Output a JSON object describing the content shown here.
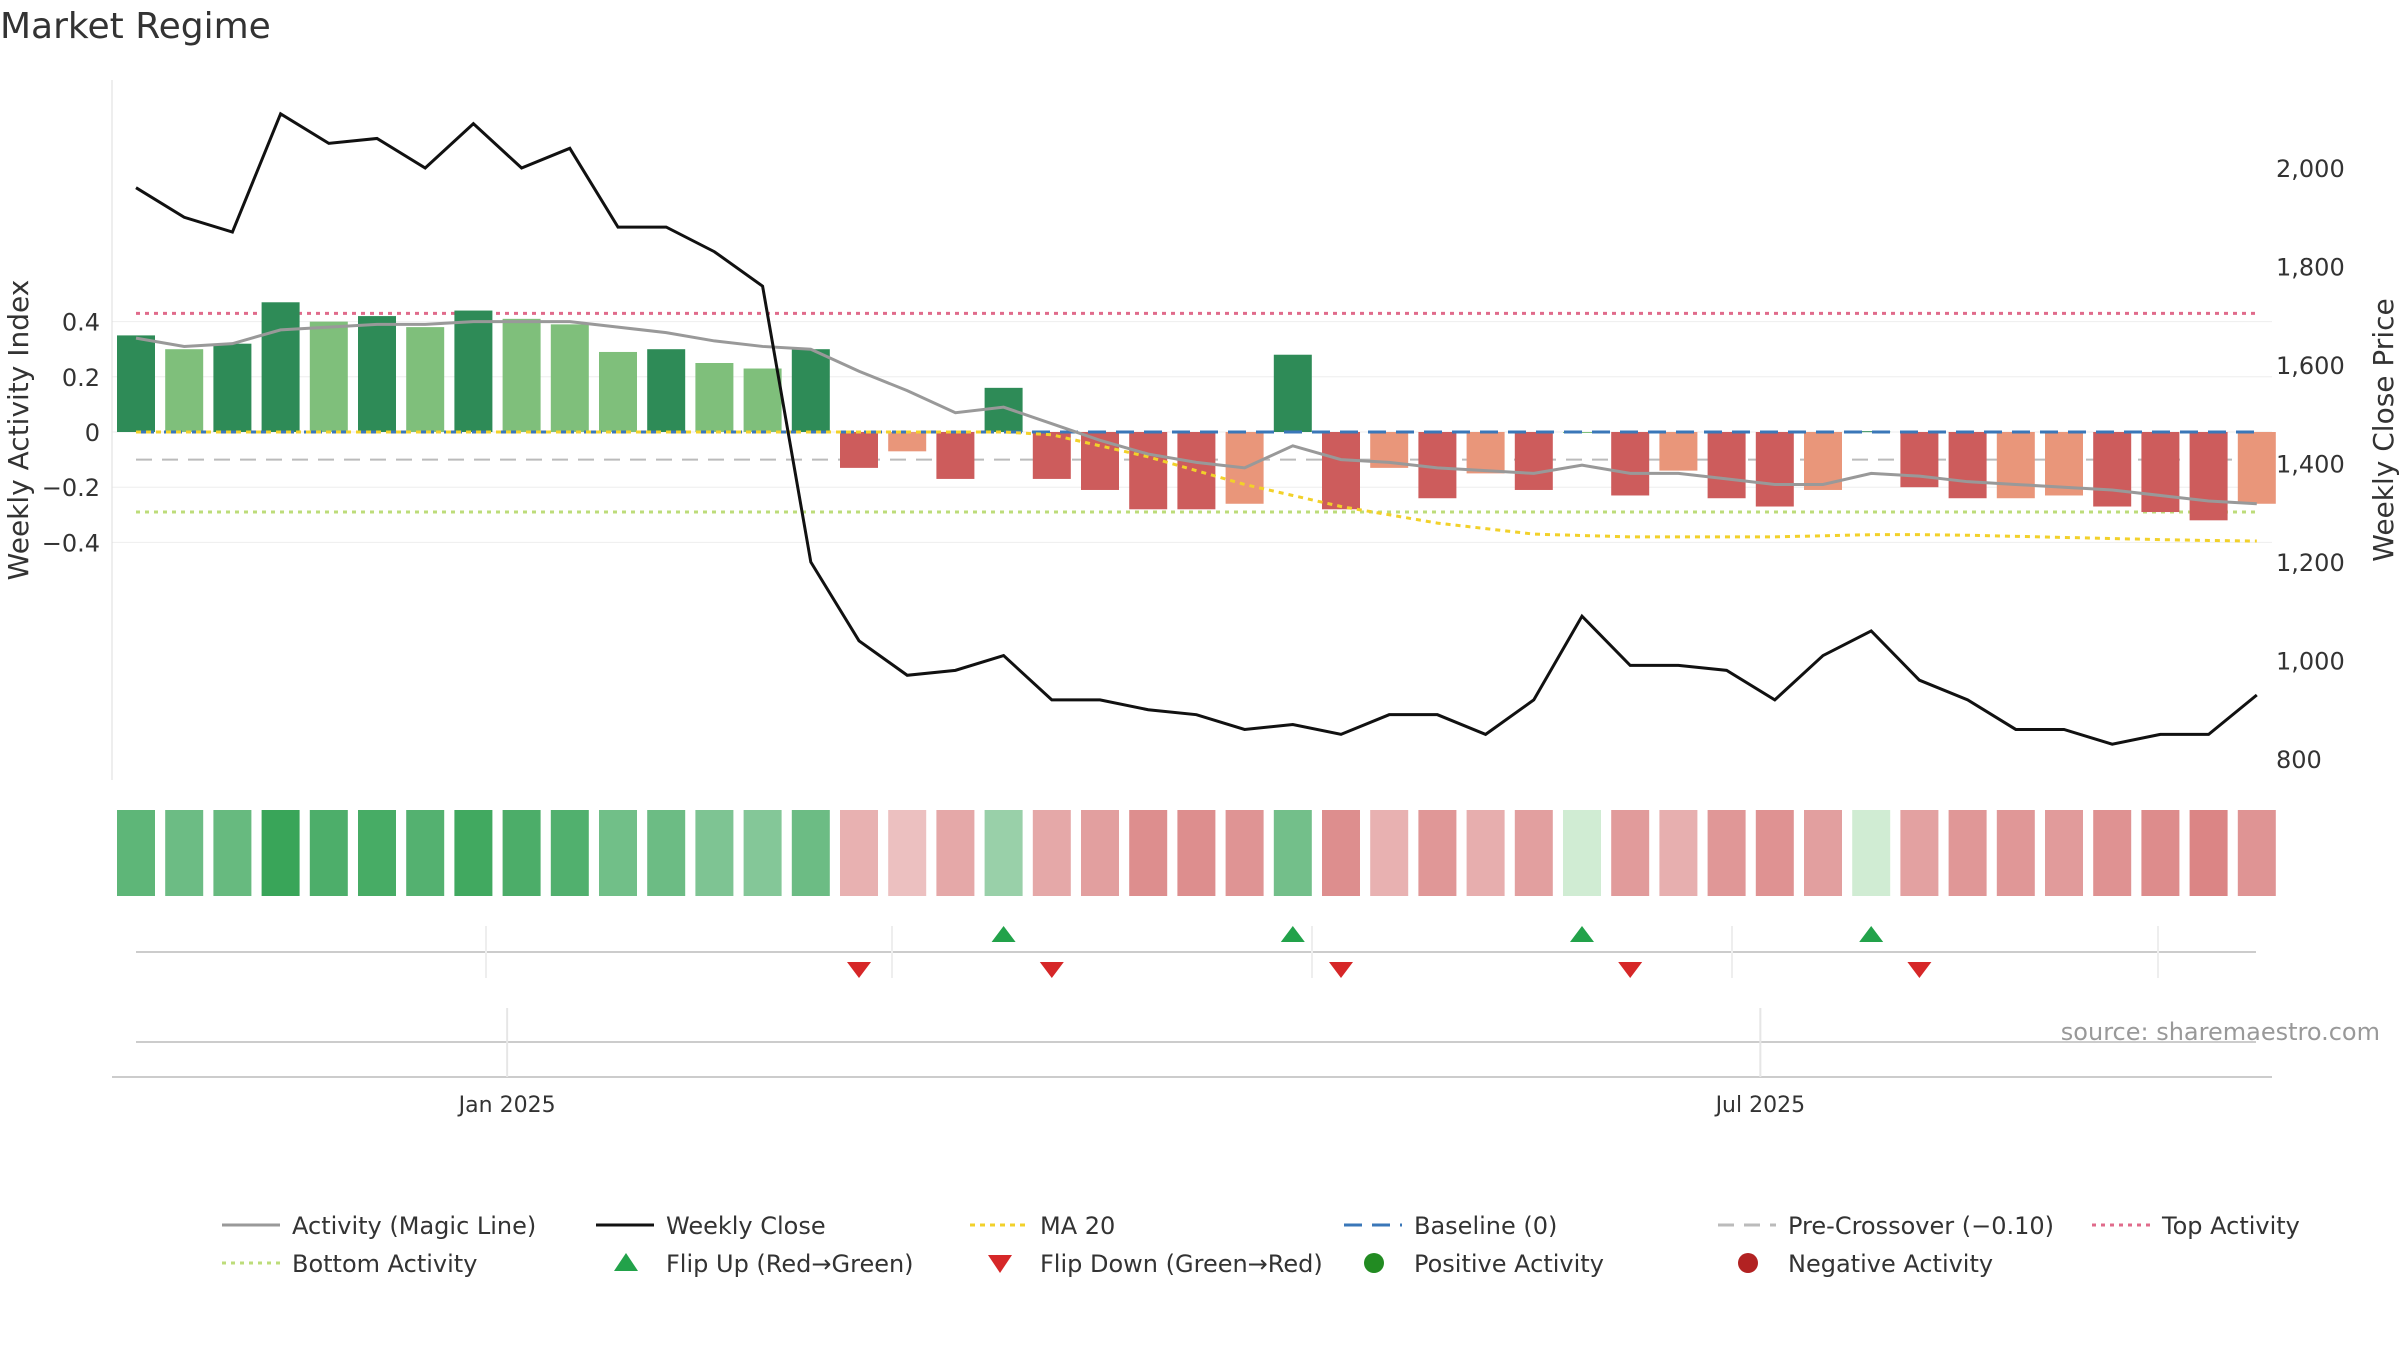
{
  "title": "Market Regime",
  "source": "source: sharemaestro.com",
  "colors": {
    "pos_strong": "#2e8b57",
    "pos_light": "#7fbf7b",
    "neg_strong": "#cd5c5c",
    "neg_light": "#e9967a",
    "magic": "#999999",
    "close": "#111111",
    "ma": "#f2d12a",
    "baseline": "#3a77b8",
    "precross": "#bbbbbb",
    "top": "#e06b8b",
    "bottom": "#bddc7a",
    "flip_up": "#22a24a",
    "flip_down": "#d62728",
    "pos_dot": "#228b22",
    "neg_dot": "#b22222"
  },
  "chart_data": {
    "type": "bar",
    "title": "Market Regime",
    "ylabel": "Weekly Activity Index",
    "y2label": "Weekly Close Price",
    "ylim": [
      -0.5,
      0.5
    ],
    "y2lim": [
      750,
      2150
    ],
    "yticks": [
      0.4,
      0.2,
      0,
      -0.2,
      -0.4
    ],
    "ytick_labels": [
      "0.4",
      "0.2",
      "0",
      "−0.2",
      "−0.4"
    ],
    "y2ticks": [
      2000,
      1800,
      1600,
      1400,
      1200,
      1000,
      800
    ],
    "y2tick_labels": [
      "2,000",
      "1,800",
      "1,600",
      "1,400",
      "1,200",
      "1,000",
      "800"
    ],
    "x_ticks": [
      {
        "label": "Jan 2025",
        "index": 7.7
      },
      {
        "label": "Jul 2025",
        "index": 33.7
      }
    ],
    "activity": [
      0.35,
      0.3,
      0.32,
      0.47,
      0.4,
      0.42,
      0.38,
      0.44,
      0.41,
      0.39,
      0.29,
      0.3,
      0.25,
      0.23,
      0.3,
      -0.13,
      -0.07,
      -0.17,
      0.16,
      -0.17,
      -0.21,
      -0.28,
      -0.28,
      -0.26,
      0.28,
      -0.28,
      -0.13,
      -0.24,
      -0.15,
      -0.21,
      0.0,
      -0.23,
      -0.14,
      -0.24,
      -0.27,
      -0.21,
      0.003,
      -0.2,
      -0.24,
      -0.24,
      -0.23,
      -0.27,
      -0.29,
      -0.32,
      -0.26
    ],
    "shade": [
      "strong",
      "light",
      "strong",
      "strong",
      "light",
      "strong",
      "light",
      "strong",
      "light",
      "light",
      "light",
      "strong",
      "light",
      "light",
      "strong",
      "strong",
      "light",
      "strong",
      "strong",
      "strong",
      "strong",
      "strong",
      "strong",
      "light",
      "strong",
      "strong",
      "light",
      "strong",
      "light",
      "strong",
      "light",
      "strong",
      "light",
      "strong",
      "strong",
      "light",
      "strong",
      "strong",
      "strong",
      "light",
      "light",
      "strong",
      "strong",
      "strong",
      "light"
    ],
    "magic_line": [
      0.34,
      0.31,
      0.32,
      0.37,
      0.38,
      0.39,
      0.39,
      0.4,
      0.4,
      0.4,
      0.38,
      0.36,
      0.33,
      0.31,
      0.3,
      0.22,
      0.15,
      0.07,
      0.09,
      0.03,
      -0.03,
      -0.08,
      -0.11,
      -0.13,
      -0.05,
      -0.1,
      -0.11,
      -0.13,
      -0.14,
      -0.15,
      -0.12,
      -0.15,
      -0.15,
      -0.17,
      -0.19,
      -0.19,
      -0.15,
      -0.16,
      -0.18,
      -0.19,
      -0.2,
      -0.21,
      -0.23,
      -0.25,
      -0.26
    ],
    "weekly_close": [
      1960,
      1900,
      1870,
      2110,
      2050,
      2060,
      2000,
      2090,
      2000,
      2040,
      1880,
      1880,
      1830,
      1760,
      1200,
      1040,
      970,
      980,
      1010,
      920,
      920,
      900,
      890,
      860,
      870,
      850,
      890,
      890,
      850,
      920,
      1090,
      990,
      990,
      980,
      920,
      1010,
      1060,
      960,
      920,
      860,
      860,
      830,
      850,
      850,
      930
    ],
    "ma20": [
      0.0,
      0.0,
      0.0,
      0.0,
      0.0,
      0.0,
      0.0,
      0.0,
      0.0,
      0.0,
      0.0,
      0.0,
      0.0,
      0.0,
      0.0,
      0.0,
      0.0,
      0.0,
      0.0,
      -0.01,
      -0.05,
      -0.09,
      -0.14,
      -0.19,
      -0.23,
      -0.27,
      -0.3,
      -0.33,
      -0.35,
      -0.37,
      -0.375,
      -0.38,
      -0.38,
      -0.38,
      -0.38,
      -0.376,
      -0.372,
      -0.372,
      -0.374,
      -0.378,
      -0.382,
      -0.386,
      -0.39,
      -0.393,
      -0.395
    ],
    "baseline": 0,
    "pre_crossover": -0.1,
    "top_activity": 0.43,
    "bottom_activity": -0.29,
    "flip_up": [
      18,
      24,
      30,
      36
    ],
    "flip_down": [
      15,
      19,
      25,
      31,
      37
    ],
    "series": [
      {
        "name": "Activity (Magic Line)"
      },
      {
        "name": "Weekly Close"
      },
      {
        "name": "MA 20"
      },
      {
        "name": "Baseline (0)"
      },
      {
        "name": "Pre-Crossover (−0.10)"
      },
      {
        "name": "Top Activity"
      },
      {
        "name": "Bottom Activity"
      },
      {
        "name": "Flip Up (Red→Green)"
      },
      {
        "name": "Flip Down (Green→Red)"
      },
      {
        "name": "Positive Activity"
      },
      {
        "name": "Negative Activity"
      }
    ]
  }
}
